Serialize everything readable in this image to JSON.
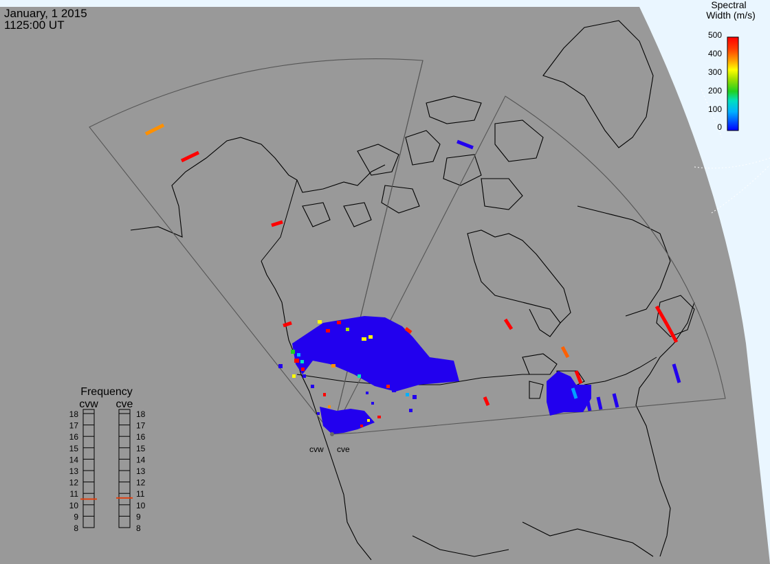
{
  "header": {
    "date": "January, 1 2015",
    "time": "1125:00 UT"
  },
  "colorbar": {
    "title_line1": "Spectral",
    "title_line2": "Width (m/s)",
    "ticks": [
      "500",
      "400",
      "300",
      "200",
      "100",
      "0"
    ],
    "colors": [
      "#0000ff",
      "#00b0ff",
      "#00e0c0",
      "#20d020",
      "#a0e000",
      "#ffff00",
      "#ffa000",
      "#ff4000",
      "#ff0000"
    ]
  },
  "radars": {
    "west_label": "cvw",
    "east_label": "cve"
  },
  "frequency": {
    "title": "Frequency",
    "left_header": "cvw",
    "right_header": "cve",
    "scale": [
      "18",
      "17",
      "16",
      "15",
      "14",
      "13",
      "12",
      "11",
      "10",
      "9",
      "8"
    ],
    "cvw_value_mhz": 10.5,
    "cve_value_mhz": 10.6,
    "marker_color": "#e04010"
  },
  "colors": {
    "land_fill": "#999999",
    "outside_fill": "#eaf6ff",
    "scatter_main": "#2200ee"
  }
}
